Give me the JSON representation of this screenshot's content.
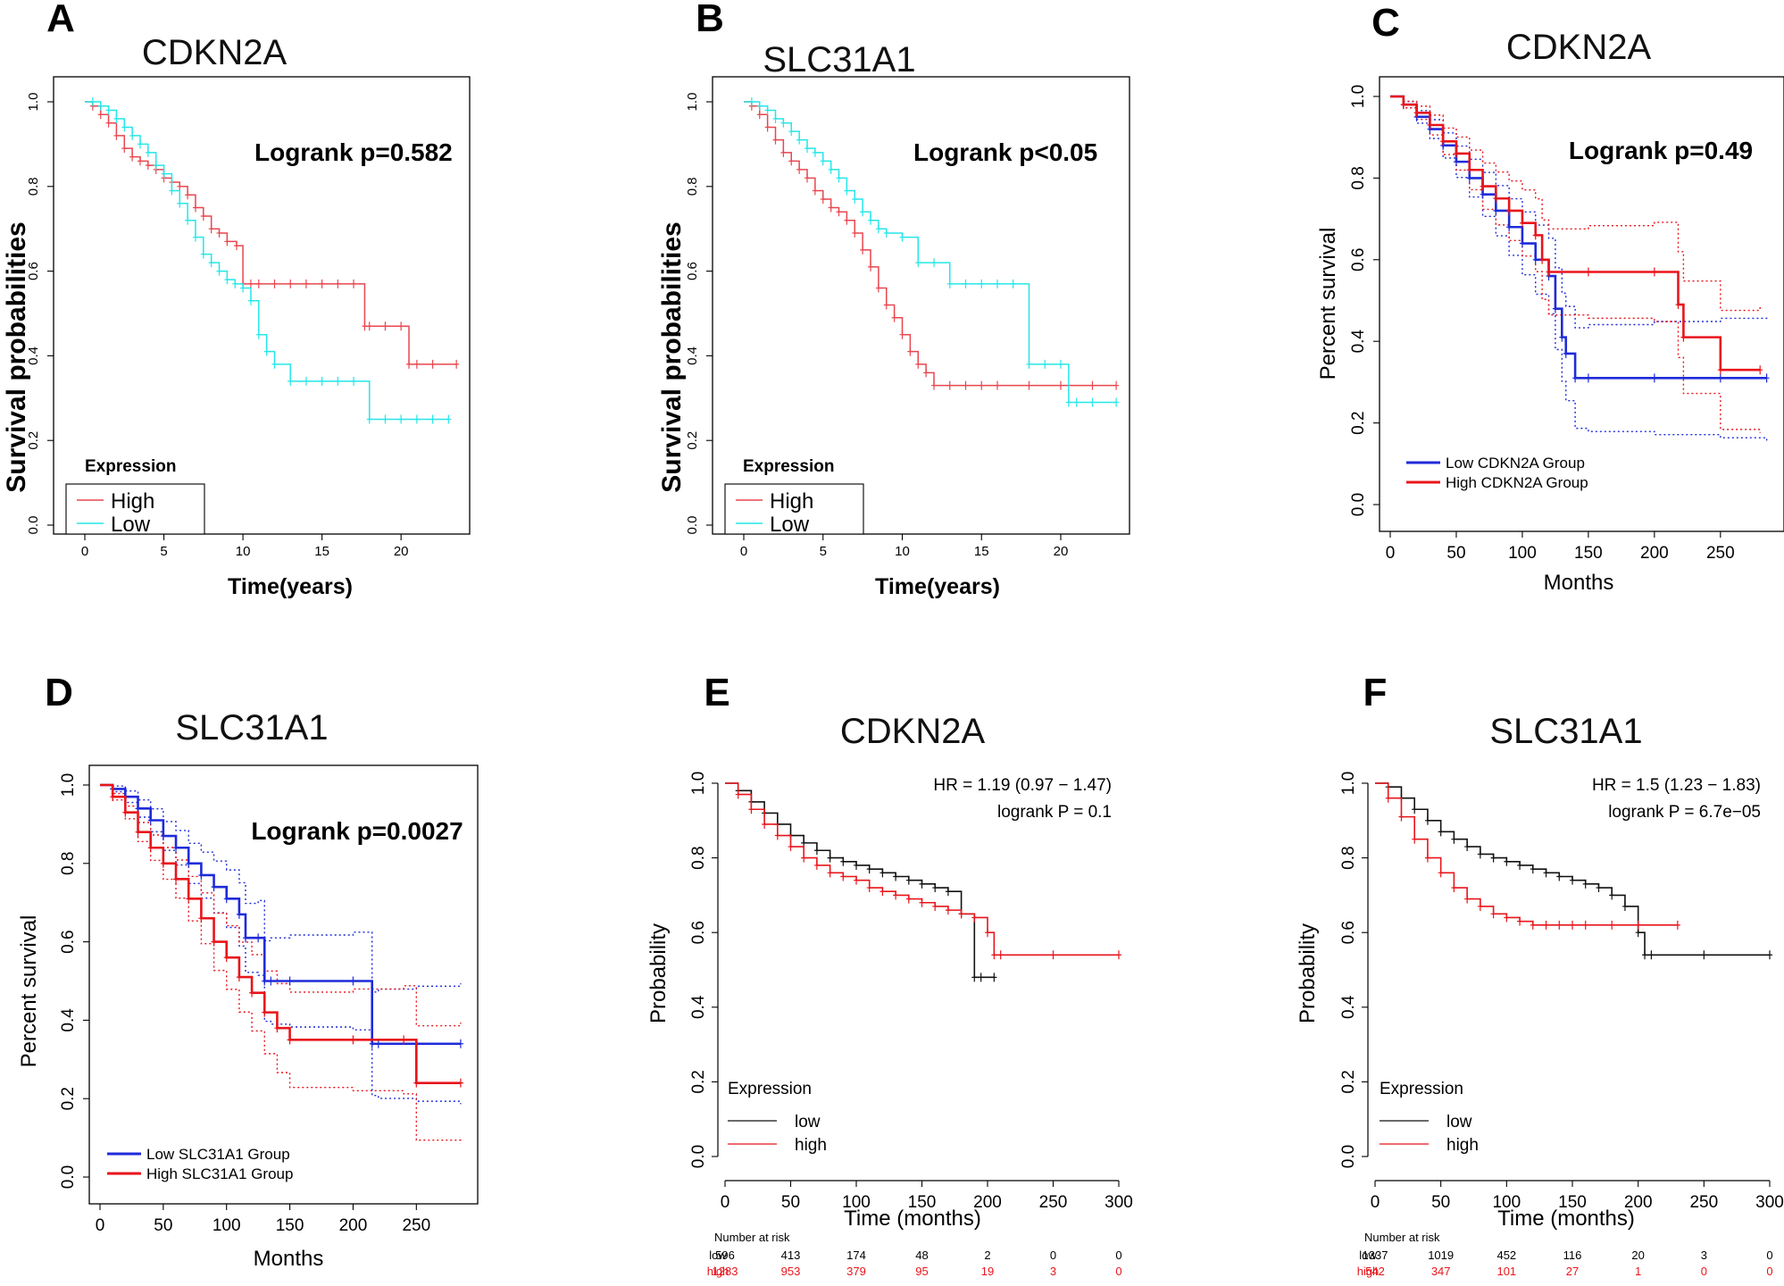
{
  "chart_data": [
    {
      "panel": "A",
      "type": "line",
      "title": "CDKN2A",
      "xlabel": "Time(years)",
      "ylabel": "Survival probabilities",
      "xlim": [
        0,
        24
      ],
      "ylim": [
        0,
        1.0
      ],
      "xticks": [
        "0",
        "5",
        "10",
        "15",
        "20"
      ],
      "yticks": [
        "0.0",
        "0.2",
        "0.4",
        "0.6",
        "0.8",
        "1.0"
      ],
      "annotation": "Logrank p=0.582",
      "legend_title": "Expression",
      "legend": [
        "High",
        "Low"
      ],
      "series": [
        {
          "name": "High",
          "color": "#e8474f",
          "x": [
            0,
            0.5,
            1,
            1.5,
            2,
            2.5,
            3,
            3.5,
            4,
            4.5,
            5,
            5.5,
            6,
            6.5,
            7,
            7.5,
            8,
            8.5,
            9,
            9.6,
            10,
            10.5,
            11,
            12,
            13,
            14,
            15,
            16,
            17,
            17.7,
            18,
            19,
            20,
            20.5,
            21,
            22,
            23.5
          ],
          "y": [
            1.0,
            0.99,
            0.97,
            0.95,
            0.92,
            0.89,
            0.87,
            0.86,
            0.85,
            0.84,
            0.82,
            0.81,
            0.8,
            0.78,
            0.75,
            0.73,
            0.7,
            0.69,
            0.67,
            0.66,
            0.57,
            0.57,
            0.57,
            0.57,
            0.57,
            0.57,
            0.57,
            0.57,
            0.57,
            0.47,
            0.47,
            0.47,
            0.47,
            0.38,
            0.38,
            0.38,
            0.38
          ]
        },
        {
          "name": "Low",
          "color": "#25e6e8",
          "x": [
            0,
            0.5,
            1,
            1.5,
            2,
            2.5,
            3,
            3.5,
            4,
            4.5,
            5,
            5.5,
            6,
            6.5,
            7,
            7.5,
            8,
            8.5,
            9,
            9.5,
            10,
            10.5,
            11,
            11.5,
            12,
            13,
            14,
            15,
            16,
            17,
            18,
            19,
            20,
            21,
            22,
            23
          ],
          "y": [
            1.0,
            1.0,
            0.99,
            0.98,
            0.96,
            0.94,
            0.92,
            0.9,
            0.88,
            0.85,
            0.83,
            0.79,
            0.76,
            0.72,
            0.68,
            0.64,
            0.62,
            0.6,
            0.58,
            0.57,
            0.56,
            0.53,
            0.45,
            0.41,
            0.38,
            0.34,
            0.34,
            0.34,
            0.34,
            0.34,
            0.25,
            0.25,
            0.25,
            0.25,
            0.25,
            0.25
          ]
        }
      ]
    },
    {
      "panel": "B",
      "type": "line",
      "title": "SLC31A1",
      "xlabel": "Time(years)",
      "ylabel": "Survival probabilities",
      "xlim": [
        0,
        24
      ],
      "ylim": [
        0,
        1.0
      ],
      "xticks": [
        "0",
        "5",
        "10",
        "15",
        "20"
      ],
      "yticks": [
        "0.0",
        "0.2",
        "0.4",
        "0.6",
        "0.8",
        "1.0"
      ],
      "annotation": "Logrank p<0.05",
      "legend_title": "Expression",
      "legend": [
        "High",
        "Low"
      ],
      "series": [
        {
          "name": "High",
          "color": "#e8474f",
          "x": [
            0,
            0.5,
            1,
            1.5,
            2,
            2.5,
            3,
            3.5,
            4,
            4.5,
            5,
            5.5,
            6,
            6.5,
            7,
            7.5,
            8,
            8.5,
            9,
            9.5,
            10,
            10.5,
            11,
            11.5,
            12,
            13,
            14,
            15,
            16,
            18,
            20,
            22,
            23.5
          ],
          "y": [
            1.0,
            0.99,
            0.97,
            0.94,
            0.91,
            0.88,
            0.86,
            0.84,
            0.82,
            0.79,
            0.77,
            0.75,
            0.74,
            0.72,
            0.69,
            0.65,
            0.61,
            0.56,
            0.52,
            0.49,
            0.45,
            0.41,
            0.38,
            0.36,
            0.33,
            0.33,
            0.33,
            0.33,
            0.33,
            0.33,
            0.33,
            0.33,
            0.33
          ]
        },
        {
          "name": "Low",
          "color": "#25e6e8",
          "x": [
            0,
            0.5,
            1,
            1.5,
            2,
            2.5,
            3,
            3.5,
            4,
            4.5,
            5,
            5.5,
            6,
            6.5,
            7,
            7.5,
            8,
            8.5,
            9,
            10,
            11,
            12,
            13,
            14,
            15,
            16,
            17,
            18,
            19,
            20,
            20.5,
            21,
            22,
            23.5
          ],
          "y": [
            1.0,
            1.0,
            0.99,
            0.98,
            0.96,
            0.95,
            0.93,
            0.91,
            0.89,
            0.88,
            0.86,
            0.84,
            0.82,
            0.79,
            0.77,
            0.74,
            0.72,
            0.7,
            0.69,
            0.68,
            0.62,
            0.62,
            0.57,
            0.57,
            0.57,
            0.57,
            0.57,
            0.38,
            0.38,
            0.38,
            0.29,
            0.29,
            0.29,
            0.29
          ]
        }
      ]
    },
    {
      "panel": "C",
      "type": "line",
      "title": "CDKN2A",
      "xlabel": "Months",
      "ylabel": "Percent survival",
      "xlim": [
        0,
        290
      ],
      "ylim": [
        0,
        1.0
      ],
      "xticks": [
        "0",
        "50",
        "100",
        "150",
        "200",
        "250"
      ],
      "yticks": [
        "0.0",
        "0.2",
        "0.4",
        "0.6",
        "0.8",
        "1.0"
      ],
      "annotation": "Logrank p=0.49",
      "legend": [
        "Low CDKN2A Group",
        "High CDKN2A Group"
      ],
      "series": [
        {
          "name": "Low CDKN2A Group",
          "color": "#1f2bd9",
          "x": [
            0,
            10,
            20,
            30,
            40,
            50,
            60,
            70,
            80,
            90,
            100,
            110,
            120,
            125,
            130,
            133,
            140,
            150,
            200,
            250,
            285
          ],
          "y": [
            1.0,
            0.98,
            0.95,
            0.92,
            0.88,
            0.84,
            0.8,
            0.76,
            0.72,
            0.68,
            0.64,
            0.6,
            0.56,
            0.48,
            0.41,
            0.37,
            0.31,
            0.31,
            0.31,
            0.31,
            0.31
          ]
        },
        {
          "name": "High CDKN2A Group",
          "color": "#e8151b",
          "x": [
            0,
            10,
            20,
            30,
            40,
            50,
            60,
            70,
            80,
            90,
            100,
            110,
            115,
            120,
            150,
            200,
            218,
            222,
            250,
            280
          ],
          "y": [
            1.0,
            0.98,
            0.96,
            0.93,
            0.89,
            0.86,
            0.82,
            0.78,
            0.75,
            0.72,
            0.69,
            0.66,
            0.6,
            0.57,
            0.57,
            0.57,
            0.49,
            0.41,
            0.33,
            0.33
          ]
        }
      ]
    },
    {
      "panel": "D",
      "type": "line",
      "title": "SLC31A1",
      "xlabel": "Months",
      "ylabel": "Percent survival",
      "xlim": [
        0,
        290
      ],
      "ylim": [
        0,
        1.0
      ],
      "xticks": [
        "0",
        "50",
        "100",
        "150",
        "200",
        "250"
      ],
      "yticks": [
        "0.0",
        "0.2",
        "0.4",
        "0.6",
        "0.8",
        "1.0"
      ],
      "annotation": "Logrank p=0.0027",
      "legend": [
        "Low SLC31A1 Group",
        "High SLC31A1 Group"
      ],
      "series": [
        {
          "name": "Low SLC31A1 Group",
          "color": "#1f2bd9",
          "x": [
            0,
            10,
            20,
            30,
            40,
            50,
            60,
            70,
            80,
            90,
            100,
            110,
            115,
            125,
            130,
            135,
            150,
            200,
            215,
            220,
            250,
            285
          ],
          "y": [
            1.0,
            0.99,
            0.97,
            0.94,
            0.91,
            0.87,
            0.84,
            0.8,
            0.77,
            0.74,
            0.71,
            0.67,
            0.61,
            0.61,
            0.5,
            0.5,
            0.5,
            0.5,
            0.34,
            0.34,
            0.34,
            0.34
          ]
        },
        {
          "name": "High SLC31A1 Group",
          "color": "#e8151b",
          "x": [
            0,
            10,
            20,
            30,
            40,
            50,
            60,
            70,
            80,
            90,
            100,
            110,
            120,
            130,
            140,
            150,
            200,
            240,
            250,
            285
          ],
          "y": [
            1.0,
            0.97,
            0.93,
            0.88,
            0.84,
            0.8,
            0.76,
            0.71,
            0.66,
            0.6,
            0.56,
            0.51,
            0.47,
            0.42,
            0.38,
            0.35,
            0.35,
            0.35,
            0.24,
            0.24
          ]
        }
      ]
    },
    {
      "panel": "E",
      "type": "line",
      "title": "CDKN2A",
      "xlabel": "Time (months)",
      "ylabel": "Probability",
      "xlim": [
        0,
        300
      ],
      "ylim": [
        0,
        1.0
      ],
      "xticks": [
        "0",
        "50",
        "100",
        "150",
        "200",
        "250",
        "300"
      ],
      "yticks": [
        "0.0",
        "0.2",
        "0.4",
        "0.6",
        "0.8",
        "1.0"
      ],
      "annotation_lines": [
        "HR = 1.19 (0.97 − 1.47)",
        "logrank P = 0.1"
      ],
      "legend_title": "Expression",
      "legend": [
        "low",
        "high"
      ],
      "series": [
        {
          "name": "low",
          "color": "#111111",
          "x": [
            0,
            10,
            20,
            30,
            40,
            50,
            60,
            70,
            80,
            90,
            100,
            110,
            120,
            130,
            140,
            150,
            160,
            170,
            180,
            190,
            195,
            205
          ],
          "y": [
            1.0,
            0.98,
            0.95,
            0.92,
            0.89,
            0.86,
            0.84,
            0.82,
            0.8,
            0.79,
            0.78,
            0.77,
            0.76,
            0.75,
            0.74,
            0.73,
            0.72,
            0.71,
            0.65,
            0.48,
            0.48,
            0.48
          ]
        },
        {
          "name": "high",
          "color": "#e8151b",
          "x": [
            0,
            10,
            20,
            30,
            40,
            50,
            60,
            70,
            80,
            90,
            100,
            110,
            120,
            130,
            140,
            150,
            160,
            170,
            180,
            190,
            200,
            205,
            210,
            250,
            300
          ],
          "y": [
            1.0,
            0.97,
            0.93,
            0.89,
            0.86,
            0.83,
            0.8,
            0.78,
            0.76,
            0.75,
            0.74,
            0.72,
            0.71,
            0.7,
            0.69,
            0.68,
            0.67,
            0.66,
            0.65,
            0.64,
            0.6,
            0.54,
            0.54,
            0.54,
            0.54
          ]
        }
      ],
      "risk_table": {
        "label": "Number at risk",
        "times": [
          "0",
          "50",
          "100",
          "150",
          "200",
          "250",
          "300"
        ],
        "rows": [
          {
            "group": "low",
            "counts": [
              "596",
              "413",
              "174",
              "48",
              "2",
              "0",
              "0"
            ]
          },
          {
            "group": "high",
            "counts": [
              "1283",
              "953",
              "379",
              "95",
              "19",
              "3",
              "0"
            ]
          }
        ]
      }
    },
    {
      "panel": "F",
      "type": "line",
      "title": "SLC31A1",
      "xlabel": "Time (months)",
      "ylabel": "Probability",
      "xlim": [
        0,
        300
      ],
      "ylim": [
        0,
        1.0
      ],
      "xticks": [
        "0",
        "50",
        "100",
        "150",
        "200",
        "250",
        "300"
      ],
      "yticks": [
        "0.0",
        "0.2",
        "0.4",
        "0.6",
        "0.8",
        "1.0"
      ],
      "annotation_lines": [
        "HR = 1.5 (1.23 − 1.83)",
        "logrank P = 6.7e−05"
      ],
      "legend_title": "Expression",
      "legend": [
        "low",
        "high"
      ],
      "series": [
        {
          "name": "low",
          "color": "#111111",
          "x": [
            0,
            10,
            20,
            30,
            40,
            50,
            60,
            70,
            80,
            90,
            100,
            110,
            120,
            130,
            140,
            150,
            160,
            170,
            180,
            190,
            200,
            205,
            210,
            250,
            300
          ],
          "y": [
            1.0,
            0.99,
            0.96,
            0.93,
            0.9,
            0.87,
            0.85,
            0.83,
            0.81,
            0.8,
            0.79,
            0.78,
            0.77,
            0.76,
            0.75,
            0.74,
            0.73,
            0.72,
            0.7,
            0.67,
            0.6,
            0.54,
            0.54,
            0.54,
            0.54
          ]
        },
        {
          "name": "high",
          "color": "#e8151b",
          "x": [
            0,
            10,
            20,
            30,
            40,
            50,
            60,
            70,
            80,
            90,
            100,
            110,
            120,
            130,
            140,
            150,
            160,
            180,
            200,
            230
          ],
          "y": [
            1.0,
            0.96,
            0.91,
            0.85,
            0.8,
            0.76,
            0.72,
            0.69,
            0.67,
            0.65,
            0.64,
            0.63,
            0.62,
            0.62,
            0.62,
            0.62,
            0.62,
            0.62,
            0.62,
            0.62
          ]
        }
      ],
      "risk_table": {
        "label": "Number at risk",
        "times": [
          "0",
          "50",
          "100",
          "150",
          "200",
          "250",
          "300"
        ],
        "rows": [
          {
            "group": "low",
            "counts": [
              "1337",
              "1019",
              "452",
              "116",
              "20",
              "3",
              "0"
            ]
          },
          {
            "group": "high",
            "counts": [
              "542",
              "347",
              "101",
              "27",
              "1",
              "0",
              "0"
            ]
          }
        ]
      }
    }
  ]
}
